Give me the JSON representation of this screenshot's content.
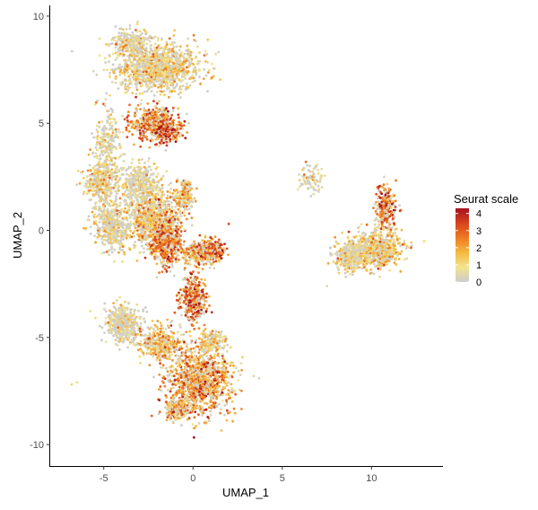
{
  "chart_data": {
    "type": "scatter",
    "title": "",
    "xlabel": "UMAP_1",
    "ylabel": "UMAP_2",
    "xlim": [
      -8,
      14
    ],
    "ylim": [
      -11,
      10.5
    ],
    "xticks": [
      -5,
      0,
      5,
      10
    ],
    "yticks": [
      -10,
      -5,
      0,
      5,
      10
    ],
    "legend": {
      "title": "Seurat scale",
      "placement": "right",
      "range": [
        0,
        4.3
      ],
      "ticks": [
        0,
        1,
        2,
        3,
        4
      ],
      "gradient": [
        "#cccccc",
        "#f2e48c",
        "#f5b93f",
        "#ee7b22",
        "#d7421e",
        "#a5121e"
      ]
    },
    "clusters": [
      {
        "cx": -2.0,
        "cy": 7.6,
        "sx": 1.9,
        "sy": 0.9,
        "n": 1200,
        "level": 1.1
      },
      {
        "cx": -3.5,
        "cy": 8.8,
        "sx": 0.9,
        "sy": 0.5,
        "n": 250,
        "level": 0.7
      },
      {
        "cx": -2.2,
        "cy": 5.0,
        "sx": 1.1,
        "sy": 0.6,
        "n": 500,
        "level": 2.6
      },
      {
        "cx": -1.4,
        "cy": 4.6,
        "sx": 0.6,
        "sy": 0.4,
        "n": 150,
        "level": 3.3
      },
      {
        "cx": -4.8,
        "cy": 4.0,
        "sx": 0.6,
        "sy": 1.3,
        "n": 250,
        "level": 0.6
      },
      {
        "cx": -5.2,
        "cy": 2.2,
        "sx": 0.8,
        "sy": 0.7,
        "n": 300,
        "level": 1.2
      },
      {
        "cx": -3.0,
        "cy": 2.2,
        "sx": 0.9,
        "sy": 0.8,
        "n": 350,
        "level": 0.5
      },
      {
        "cx": -4.5,
        "cy": 0.3,
        "sx": 0.9,
        "sy": 1.0,
        "n": 450,
        "level": 0.9
      },
      {
        "cx": -2.2,
        "cy": 0.5,
        "sx": 1.1,
        "sy": 1.2,
        "n": 800,
        "level": 1.4
      },
      {
        "cx": -1.5,
        "cy": -0.5,
        "sx": 0.7,
        "sy": 1.0,
        "n": 450,
        "level": 2.7
      },
      {
        "cx": 0.4,
        "cy": -1.0,
        "sx": 0.8,
        "sy": 0.5,
        "n": 300,
        "level": 2.3
      },
      {
        "cx": 1.2,
        "cy": -0.9,
        "sx": 0.5,
        "sy": 0.4,
        "n": 120,
        "level": 3.1
      },
      {
        "cx": -0.5,
        "cy": 1.5,
        "sx": 0.5,
        "sy": 0.7,
        "n": 150,
        "level": 1.8
      },
      {
        "cx": 0.0,
        "cy": -3.2,
        "sx": 0.6,
        "sy": 0.9,
        "n": 350,
        "level": 3.0
      },
      {
        "cx": -3.9,
        "cy": -4.4,
        "sx": 0.9,
        "sy": 0.7,
        "n": 450,
        "level": 0.4
      },
      {
        "cx": -1.8,
        "cy": -5.3,
        "sx": 1.0,
        "sy": 0.7,
        "n": 350,
        "level": 1.6
      },
      {
        "cx": 0.4,
        "cy": -7.0,
        "sx": 1.5,
        "sy": 1.3,
        "n": 1100,
        "level": 2.3
      },
      {
        "cx": -0.9,
        "cy": -8.4,
        "sx": 0.6,
        "sy": 0.4,
        "n": 200,
        "level": 1.9
      },
      {
        "cx": 1.1,
        "cy": -5.2,
        "sx": 0.6,
        "sy": 0.4,
        "n": 150,
        "level": 1.2
      },
      {
        "cx": 6.6,
        "cy": 2.4,
        "sx": 0.6,
        "sy": 0.5,
        "n": 90,
        "level": 0.4
      },
      {
        "cx": 10.8,
        "cy": 1.0,
        "sx": 0.5,
        "sy": 0.9,
        "n": 260,
        "level": 2.8
      },
      {
        "cx": 10.2,
        "cy": -0.9,
        "sx": 1.2,
        "sy": 0.7,
        "n": 700,
        "level": 1.3
      },
      {
        "cx": 8.7,
        "cy": -1.2,
        "sx": 0.6,
        "sy": 0.6,
        "n": 250,
        "level": 0.7
      }
    ],
    "outliers": [
      {
        "x": -6.8,
        "y": -7.2,
        "level": 1.2
      },
      {
        "x": -6.5,
        "y": -7.1,
        "level": 1.0
      },
      {
        "x": -6.0,
        "y": 0.1,
        "level": 1.5
      },
      {
        "x": 2.7,
        "y": -6.2,
        "level": 0.6
      },
      {
        "x": 3.4,
        "y": -6.8,
        "level": 0.3
      },
      {
        "x": 3.7,
        "y": -6.9,
        "level": 0.2
      },
      {
        "x": 2.0,
        "y": 0.3,
        "level": 3.4
      },
      {
        "x": 7.5,
        "y": -2.6,
        "level": 0.5
      },
      {
        "x": 12.1,
        "y": -0.8,
        "level": 0.6
      }
    ]
  }
}
